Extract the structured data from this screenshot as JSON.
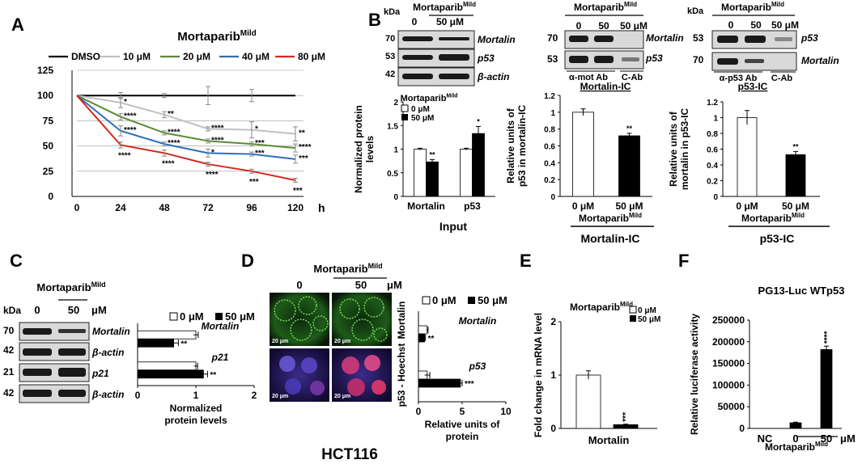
{
  "figure": {
    "panel_letters": [
      "A",
      "B",
      "C",
      "D",
      "E",
      "F"
    ],
    "bottom_label": "HCT116"
  },
  "treatment": {
    "base": "Mortaparib",
    "superscript": "Mild"
  },
  "chart_data": [
    {
      "id": "A",
      "type": "line",
      "title": "Mortaparib",
      "title_superscript": "Mild",
      "xlabel": "h",
      "ylabel": "",
      "x": [
        0,
        24,
        48,
        72,
        96,
        120
      ],
      "xticks": [
        "0",
        "24",
        "48",
        "72",
        "96",
        "120"
      ],
      "ylim": [
        0,
        125
      ],
      "yticks": [
        "0",
        "25",
        "50",
        "75",
        "100",
        "125"
      ],
      "grid": true,
      "legend": "top",
      "series": [
        {
          "name": "DMSO",
          "color": "#000000",
          "values": [
            100,
            100,
            100,
            100,
            100,
            100
          ],
          "errors": [
            0,
            3,
            2,
            9,
            6,
            0
          ],
          "labels": [
            "",
            "",
            "",
            "",
            "",
            ""
          ]
        },
        {
          "name": "10 μM",
          "color": "#c0c0c0",
          "values": [
            100,
            93,
            81,
            67,
            66,
            62
          ],
          "errors": [
            0,
            5,
            3,
            2,
            8,
            7
          ],
          "labels": [
            "",
            "*",
            "**",
            "****",
            "*",
            "**"
          ]
        },
        {
          "name": "20 μM",
          "color": "#5a8a32",
          "values": [
            100,
            79,
            63,
            55,
            52,
            48
          ],
          "errors": [
            0,
            3,
            2,
            2,
            2,
            4
          ],
          "labels": [
            "",
            "****",
            "****",
            "****",
            "***",
            "****"
          ]
        },
        {
          "name": "40 μM",
          "color": "#2f6fb8",
          "values": [
            100,
            65,
            52,
            43,
            42,
            37
          ],
          "errors": [
            0,
            5,
            2,
            4,
            2,
            4
          ],
          "labels": [
            "",
            "****",
            "****",
            "*",
            "***",
            "***"
          ]
        },
        {
          "name": "80 μM",
          "color": "#d42a1f",
          "values": [
            100,
            51,
            43,
            32,
            25,
            16
          ],
          "errors": [
            0,
            3,
            3,
            2,
            2,
            2
          ],
          "labels": [
            "",
            "****",
            "****",
            "****",
            "***",
            "***"
          ]
        }
      ]
    },
    {
      "id": "B-input",
      "type": "bar",
      "xlabel": "Input",
      "ylabel": "Normalized protein levels",
      "categories": [
        "Mortalin",
        "p53"
      ],
      "ylim": [
        0,
        2
      ],
      "yticks": [
        "0",
        "0.5",
        "1",
        "1.5",
        "2"
      ],
      "legend_title": "Mortaparib",
      "legend_title_superscript": "Mild",
      "series": [
        {
          "name": "0 μM",
          "color": "#ffffff",
          "values": [
            1.0,
            1.0
          ],
          "errors": [
            0.02,
            0.02
          ],
          "labels": [
            "",
            ""
          ]
        },
        {
          "name": "50 μM",
          "color": "#000000",
          "values": [
            0.73,
            1.33
          ],
          "errors": [
            0.05,
            0.15
          ],
          "labels": [
            "**",
            "*"
          ]
        }
      ]
    },
    {
      "id": "B-mortalin-ic",
      "type": "bar",
      "ylabel": "Relative units of p53 in mortalin-IC",
      "categories": [
        "0 μM",
        "50 μM"
      ],
      "values": [
        1.0,
        0.72
      ],
      "errors": [
        0.04,
        0.03
      ],
      "colors": [
        "#ffffff",
        "#000000"
      ],
      "labels": [
        "",
        "**"
      ],
      "ylim": [
        0,
        1.2
      ],
      "yticks": [
        "0",
        "0.2",
        "0.4",
        "0.6",
        "0.8",
        "1",
        "1.2"
      ],
      "group_label": "Mortaparib",
      "group_label_superscript": "Mild",
      "group_caption": "Mortalin-IC"
    },
    {
      "id": "B-p53-ic",
      "type": "bar",
      "ylabel": "Relative units of mortalin in p53-IC",
      "categories": [
        "0 μM",
        "50 μM"
      ],
      "values": [
        1.0,
        0.53
      ],
      "errors": [
        0.09,
        0.04
      ],
      "colors": [
        "#ffffff",
        "#000000"
      ],
      "labels": [
        "",
        "**"
      ],
      "ylim": [
        0,
        1.2
      ],
      "yticks": [
        "0",
        "0.2",
        "0.4",
        "0.6",
        "0.8",
        "1",
        "1.2"
      ],
      "group_label": "Mortaparib",
      "group_label_superscript": "Mild",
      "group_caption": "p53-IC"
    },
    {
      "id": "C",
      "type": "bar",
      "orientation": "horizontal",
      "xlabel": "Normalized protein levels",
      "categories": [
        "Mortalin",
        "p21"
      ],
      "xlim": [
        0,
        2
      ],
      "xticks": [
        "0",
        "1",
        "2"
      ],
      "legend": "top",
      "series": [
        {
          "name": "0 μM",
          "color": "#ffffff",
          "values": [
            1.0,
            1.0
          ],
          "errors": [
            0.04,
            0.03
          ],
          "labels": [
            "",
            ""
          ]
        },
        {
          "name": "50 μM",
          "color": "#000000",
          "values": [
            0.62,
            1.13
          ],
          "errors": [
            0.08,
            0.07
          ],
          "labels": [
            "**",
            "**"
          ]
        }
      ]
    },
    {
      "id": "D",
      "type": "bar",
      "orientation": "horizontal",
      "xlabel": "Relative units of protein",
      "categories": [
        "Mortalin",
        "p53"
      ],
      "xlim": [
        0,
        10
      ],
      "xticks": [
        "0",
        "5",
        "10"
      ],
      "legend": "top",
      "series": [
        {
          "name": "0 μM",
          "color": "#ffffff",
          "values": [
            1.0,
            1.0
          ],
          "errors": [
            0.1,
            0.3
          ],
          "labels": [
            "",
            ""
          ]
        },
        {
          "name": "50 μM",
          "color": "#000000",
          "values": [
            0.7,
            4.8
          ],
          "errors": [
            0.1,
            0.2
          ],
          "labels": [
            "**",
            "***"
          ]
        }
      ]
    },
    {
      "id": "E",
      "type": "bar",
      "ylabel": "Fold change in mRNA level",
      "categories": [
        "Mortalin"
      ],
      "ylim": [
        0,
        2
      ],
      "yticks": [
        "0",
        "1",
        "2"
      ],
      "legend_title": "Mortaparib",
      "legend_title_superscript": "Mild",
      "series": [
        {
          "name": "0 μM",
          "color": "#ffffff",
          "values": [
            1.0
          ],
          "errors": [
            0.08
          ],
          "labels": [
            ""
          ]
        },
        {
          "name": "50 μM",
          "color": "#000000",
          "values": [
            0.07
          ],
          "errors": [
            0.01
          ],
          "labels": [
            "***"
          ]
        }
      ]
    },
    {
      "id": "F",
      "type": "bar",
      "title": "PG13-Luc WTp53",
      "ylabel": "Relative luciferase activity",
      "categories": [
        "NC",
        "0",
        "50"
      ],
      "unit": "μM",
      "values": [
        0,
        13000,
        182000
      ],
      "errors": [
        0,
        1500,
        8000
      ],
      "colors": [
        "#000000",
        "#000000",
        "#000000"
      ],
      "labels": [
        "",
        "",
        "****"
      ],
      "ylim": [
        0,
        250000
      ],
      "yticks": [
        "0",
        "50000",
        "100000",
        "150000",
        "200000",
        "250000"
      ],
      "group_label": "Mortaparib",
      "group_label_superscript": "Mild"
    }
  ],
  "blots": {
    "unit": "kDa",
    "dose_labels": [
      "0",
      "50 μM"
    ],
    "b_input": {
      "mw": [
        "70",
        "53",
        "42"
      ],
      "proteins": [
        "Mortalin",
        "p53",
        "β-actin"
      ]
    },
    "b_mortalin_ic": {
      "mw": [
        "70",
        "53"
      ],
      "proteins": [
        "Mortalin",
        "p53"
      ],
      "lanes": [
        "0",
        "50",
        "50 μM"
      ],
      "ab_labels": [
        "α-mot Ab",
        "C-Ab"
      ],
      "caption": "Mortalin-IC"
    },
    "b_p53_ic": {
      "mw": [
        "53",
        "70"
      ],
      "proteins": [
        "p53",
        "Mortalin"
      ],
      "lanes": [
        "0",
        "50",
        "50 μM"
      ],
      "ab_labels": [
        "α-p53 Ab",
        "C-Ab"
      ],
      "caption": "p53-IC"
    },
    "c": {
      "mw": [
        "70",
        "42",
        "21",
        "42"
      ],
      "proteins": [
        "Mortalin",
        "β-actin",
        "p21",
        "β-actin"
      ],
      "lanes": [
        "0",
        "50"
      ],
      "unit_suffix": "μM"
    }
  },
  "microscopy": {
    "columns": [
      "0",
      "50",
      "μM"
    ],
    "rows": [
      "Mortalin",
      "p53 - Hoechst"
    ],
    "scale_bar": "20 μm"
  }
}
